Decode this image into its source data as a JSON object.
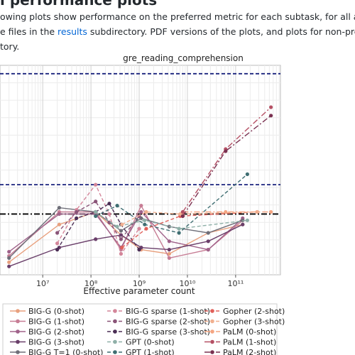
{
  "heading": "l performance plots",
  "paragraph": [
    "owing plots show performance on the preferred metric for each subtask, for all available models. These plots are au",
    [
      "e files in the ",
      "results",
      " subdirectory. PDF versions of the plots, and plots for non-preferred metrics, are also available i"
    ],
    "tory."
  ],
  "chart_data": {
    "type": "line",
    "title": "gre_reading_comprehension",
    "xlabel": "Effective parameter count",
    "xscale": "log",
    "xlim": [
      1300000,
      850000000000
    ],
    "ylim": [
      0,
      1
    ],
    "grid": true,
    "xticks": [
      {
        "value": 10000000,
        "label": "10⁷"
      },
      {
        "value": 100000000,
        "label": "10⁸"
      },
      {
        "value": 1000000000,
        "label": "10⁹"
      },
      {
        "value": 10000000000,
        "label": "10¹⁰"
      },
      {
        "value": 100000000000,
        "label": "10¹¹"
      }
    ],
    "hlines": [
      {
        "value": 0.96,
        "color": "#1a237e",
        "style": "dashed"
      },
      {
        "value": 0.43,
        "color": "#1a237e",
        "style": "dashed"
      },
      {
        "value": 0.29,
        "color": "#000000",
        "style": "dashdot"
      }
    ],
    "series": [
      {
        "name": "BIG-G (0-shot)",
        "color": "#e8a07e",
        "linestyle": "solid",
        "x": [
          2000000,
          22000000,
          125000000,
          420000000,
          1100000000,
          4200000000,
          27000000000,
          140000000000
        ],
        "values": [
          0.06,
          0.24,
          0.3,
          0.19,
          0.12,
          0.1,
          0.2,
          0.24
        ]
      },
      {
        "name": "BIG-G (1-shot)",
        "color": "#c77d95",
        "linestyle": "solid",
        "x": [
          2000000,
          22000000,
          125000000,
          420000000,
          1100000000,
          4200000000,
          27000000000,
          140000000000
        ],
        "values": [
          0.09,
          0.3,
          0.3,
          0.12,
          0.33,
          0.08,
          0.12,
          0.26
        ]
      },
      {
        "name": "BIG-G (2-shot)",
        "color": "#a0628a",
        "linestyle": "solid",
        "x": [
          2000000,
          22000000,
          125000000,
          420000000,
          1100000000,
          4200000000,
          27000000000,
          140000000000
        ],
        "values": [
          0.11,
          0.29,
          0.29,
          0.13,
          0.3,
          0.16,
          0.12,
          0.27
        ]
      },
      {
        "name": "BIG-G (3-shot)",
        "color": "#6a3f6a",
        "linestyle": "solid",
        "x": [
          2000000,
          22000000,
          125000000,
          420000000,
          1100000000,
          4200000000,
          27000000000,
          140000000000
        ],
        "values": [
          0.04,
          0.13,
          0.17,
          0.19,
          0.13,
          0.12,
          0.16,
          0.24
        ]
      },
      {
        "name": "BIG-G T=1 (0-shot)",
        "color": "#6e6e78",
        "linestyle": "solid",
        "x": [
          2000000,
          22000000,
          125000000,
          420000000,
          1100000000,
          4200000000,
          27000000000,
          140000000000
        ],
        "values": [
          0.08,
          0.32,
          0.3,
          0.21,
          0.27,
          0.23,
          0.2,
          0.26
        ]
      },
      {
        "name": "BIG-G sparse (1-shot)",
        "color": "#d4869a",
        "linestyle": "dashed",
        "x": [
          20000000,
          50000000,
          125000000,
          240000000,
          420000000,
          1000000000
        ],
        "values": [
          0.15,
          0.31,
          0.43,
          0.29,
          0.1,
          0.22
        ]
      },
      {
        "name": "BIG-G sparse (2-shot)",
        "color": "#8a5478",
        "linestyle": "dashed",
        "x": [
          20000000,
          50000000,
          125000000,
          240000000,
          420000000,
          1000000000
        ],
        "values": [
          0.2,
          0.3,
          0.35,
          0.25,
          0.17,
          0.28
        ]
      },
      {
        "name": "BIG-G sparse (3-shot)",
        "color": "#4b2e55",
        "linestyle": "dashed",
        "x": [
          20000000,
          50000000,
          125000000,
          240000000,
          420000000,
          1000000000
        ],
        "values": [
          0.12,
          0.27,
          0.3,
          0.34,
          0.24,
          0.12
        ]
      },
      {
        "name": "GPT (0-shot)",
        "color": "#8fb0a8",
        "linestyle": "dashed",
        "x": [
          125000000,
          350000000,
          1300000000,
          6700000000,
          175000000000
        ],
        "values": [
          0.3,
          0.23,
          0.26,
          0.22,
          0.26
        ]
      },
      {
        "name": "GPT (1-shot)",
        "color": "#3f6e72",
        "linestyle": "dashed",
        "x": [
          125000000,
          350000000,
          1300000000,
          6700000000,
          175000000000
        ],
        "values": [
          0.28,
          0.33,
          0.24,
          0.2,
          0.48
        ]
      },
      {
        "name": "Gopher (2-shot)",
        "color": "#e0605a",
        "linestyle": "dashed",
        "x": [
          440000000,
          1400000000,
          7100000000,
          280000000000
        ],
        "values": [
          0.13,
          0.22,
          0.28,
          0.3
        ]
      },
      {
        "name": "Gopher (3-shot)",
        "color": "#f0b090",
        "linestyle": "dashed",
        "x": [
          440000000,
          1400000000,
          7100000000,
          280000000000
        ],
        "values": [
          0.24,
          0.3,
          0.29,
          0.3
        ]
      },
      {
        "name": "PaLM (0-shot)",
        "color": "#f4a582",
        "linestyle": "dashdot",
        "x": [
          8000000000,
          62000000000,
          540000000000
        ],
        "values": [
          0.3,
          0.3,
          0.3
        ]
      },
      {
        "name": "PaLM (1-shot)",
        "color": "#b55064",
        "linestyle": "dashdot",
        "x": [
          8000000000,
          62000000000,
          540000000000
        ],
        "values": [
          0.3,
          0.6,
          0.8
        ]
      },
      {
        "name": "PaLM (2-shot)",
        "color": "#7a3050",
        "linestyle": "dashdot",
        "x": [
          8000000000,
          62000000000,
          540000000000
        ],
        "values": [
          0.28,
          0.59,
          0.76
        ]
      }
    ]
  }
}
